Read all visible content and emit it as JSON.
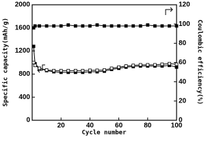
{
  "chart_data": {
    "type": "line",
    "x_label": "Cycle number",
    "y_label": "Specific capacity(mAh/g)",
    "y2_label": "Coulombic efficiency(%)",
    "x": [
      1,
      2,
      5,
      10,
      15,
      20,
      25,
      30,
      35,
      40,
      45,
      50,
      55,
      60,
      65,
      70,
      75,
      80,
      85,
      90,
      95,
      100
    ],
    "series": [
      {
        "color": "#000000",
        "marker": "filled",
        "values": [
          1280,
          980,
          900,
          860,
          840,
          830,
          830,
          830,
          830,
          840,
          840,
          850,
          880,
          900,
          920,
          930,
          940,
          940,
          940,
          940,
          950,
          920
        ]
      },
      {
        "color": "#000000",
        "marker": "open",
        "values": [
          1000,
          950,
          900,
          870,
          860,
          860,
          860,
          860,
          860,
          865,
          865,
          870,
          900,
          920,
          940,
          950,
          960,
          960,
          960,
          970,
          980,
          970
        ]
      },
      {
        "color": "#000000",
        "marker": "filled",
        "axis": "y2",
        "values": [
          96,
          98,
          98,
          98,
          98,
          98,
          99,
          98,
          98,
          98,
          99,
          98,
          98,
          98,
          98,
          98,
          98,
          99,
          98,
          98,
          98,
          98
        ]
      }
    ],
    "xlim": [
      0,
      100
    ],
    "xticks": [
      20,
      40,
      60,
      80,
      100
    ],
    "ylim": [
      0,
      2000
    ],
    "yticks": [
      0,
      400,
      800,
      1200,
      1600,
      2000
    ],
    "y2lim": [
      0,
      120
    ],
    "y2ticks": [
      0,
      20,
      40,
      60,
      80,
      100,
      120
    ]
  }
}
